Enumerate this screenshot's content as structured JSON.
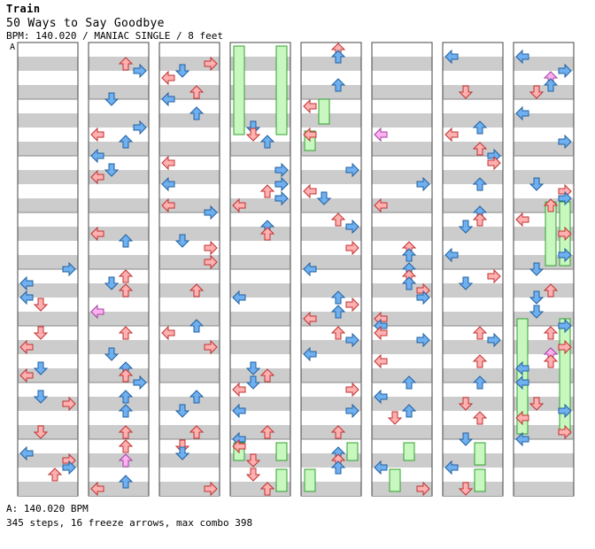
{
  "song": {
    "artist": "Train",
    "title": "50 Ways to Say Goodbye",
    "meta": "BPM: 140.020 / MANIAC SINGLE / 8 feet",
    "section_label": "A"
  },
  "footer": {
    "bpm_line": "A: 140.020 BPM",
    "stats_line": "345 steps, 16 freeze arrows, max combo 398"
  },
  "colors": {
    "band": "#cccccc",
    "column_border": "#444444",
    "red_arrow": "#ffb0b0",
    "red_arrow_stroke": "#c03030",
    "blue_arrow": "#6fb0f0",
    "blue_arrow_stroke": "#2060a0",
    "pink_arrow": "#ffb0f0",
    "freeze_fill": "#c8f8c0",
    "freeze_stroke": "#30a030"
  },
  "chart_data": {
    "type": "step-chart",
    "difficulty": "MANIAC SINGLE",
    "bpm": 140.02,
    "steps": 345,
    "freeze_arrows": 16,
    "max_combo": 398,
    "lane_order": [
      "left",
      "down",
      "up",
      "right"
    ]
  }
}
